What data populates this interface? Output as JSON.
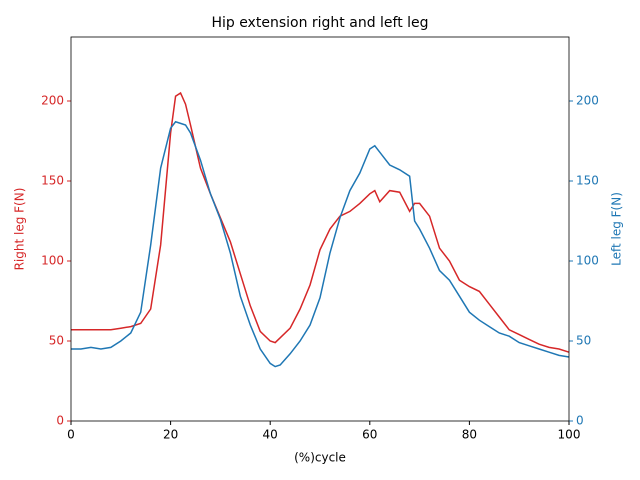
{
  "chart_data": {
    "type": "line",
    "title": "Hip extension right and left leg",
    "x_label": "(%)cycle",
    "y_label": "Right leg F(N)",
    "y2_label": "Left leg F(N)",
    "x": [
      0,
      2,
      4,
      6,
      8,
      10,
      12,
      14,
      16,
      18,
      20,
      21,
      22,
      23,
      24,
      26,
      28,
      30,
      32,
      34,
      36,
      38,
      40,
      41,
      42,
      44,
      46,
      48,
      50,
      52,
      54,
      56,
      58,
      60,
      61,
      62,
      64,
      66,
      68,
      69,
      70,
      72,
      74,
      76,
      78,
      80,
      82,
      84,
      86,
      88,
      90,
      92,
      94,
      96,
      98,
      100
    ],
    "series": [
      {
        "name": "Right leg",
        "color": "#d62728",
        "axis": "y",
        "values": [
          57,
          57,
          57,
          57,
          57,
          58,
          59,
          61,
          70,
          110,
          180,
          203,
          205,
          198,
          185,
          158,
          142,
          127,
          112,
          92,
          72,
          56,
          50,
          49,
          52,
          58,
          70,
          85,
          107,
          120,
          128,
          131,
          136,
          142,
          144,
          137,
          144,
          143,
          131,
          136,
          136,
          128,
          108,
          100,
          88,
          84,
          81,
          73,
          65,
          57,
          54,
          51,
          48,
          46,
          45,
          43
        ]
      },
      {
        "name": "Left leg",
        "color": "#1f77b4",
        "axis": "y2",
        "values": [
          45,
          45,
          46,
          45,
          46,
          50,
          55,
          68,
          110,
          158,
          183,
          187,
          186,
          185,
          180,
          163,
          142,
          126,
          105,
          78,
          60,
          45,
          36,
          34,
          35,
          42,
          50,
          60,
          77,
          105,
          127,
          144,
          155,
          170,
          172,
          168,
          160,
          157,
          153,
          125,
          120,
          108,
          94,
          88,
          78,
          68,
          63,
          59,
          55,
          53,
          49,
          47,
          45,
          43,
          41,
          40
        ]
      }
    ],
    "xlim": [
      0,
      100
    ],
    "xticks": [
      0,
      20,
      40,
      60,
      80,
      100
    ],
    "ylim": [
      0,
      240
    ],
    "yticks": [
      0,
      50,
      100,
      150,
      200
    ],
    "y2lim": [
      0,
      240
    ],
    "y2ticks": [
      0,
      50,
      100,
      150,
      200
    ]
  }
}
